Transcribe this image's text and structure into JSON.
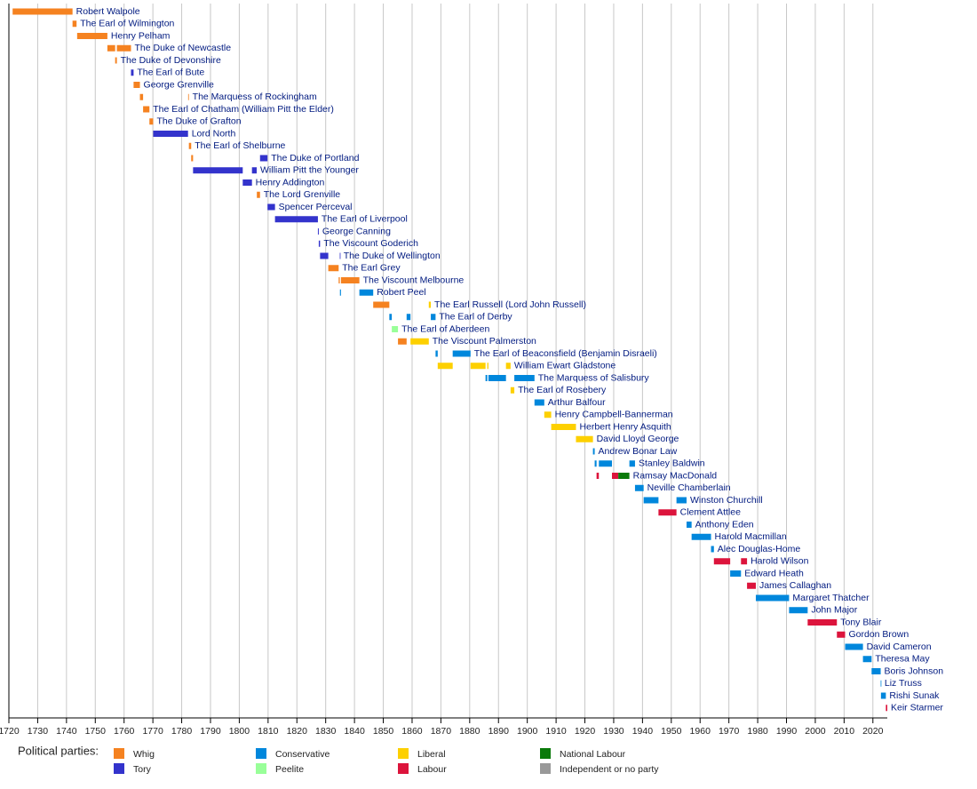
{
  "chart_data": {
    "type": "timeline",
    "legend_title": "Political parties:",
    "parties": [
      {
        "name": "Whig",
        "color": "#f58220"
      },
      {
        "name": "Tory",
        "color": "#3333cc"
      },
      {
        "name": "Conservative",
        "color": "#0087dc"
      },
      {
        "name": "Peelite",
        "color": "#99ff99"
      },
      {
        "name": "Liberal",
        "color": "#fdd000"
      },
      {
        "name": "Labour",
        "color": "#dc143c"
      },
      {
        "name": "National Labour",
        "color": "#0a7a0a"
      },
      {
        "name": "Independent or no party",
        "color": "#999999"
      }
    ],
    "rows": [
      {
        "name": "Robert Walpole",
        "terms": [
          {
            "start": 1721.3,
            "end": 1742.1,
            "party": "Whig"
          }
        ]
      },
      {
        "name": "The Earl of Wilmington",
        "terms": [
          {
            "start": 1742.1,
            "end": 1743.5,
            "party": "Whig"
          }
        ]
      },
      {
        "name": "Henry Pelham",
        "terms": [
          {
            "start": 1743.7,
            "end": 1754.2,
            "party": "Whig"
          }
        ]
      },
      {
        "name": "The Duke of Newcastle",
        "terms": [
          {
            "start": 1754.2,
            "end": 1756.9,
            "party": "Whig"
          },
          {
            "start": 1757.5,
            "end": 1762.4,
            "party": "Whig"
          }
        ]
      },
      {
        "name": "The Duke of Devonshire",
        "terms": [
          {
            "start": 1756.9,
            "end": 1757.5,
            "party": "Whig"
          }
        ]
      },
      {
        "name": "The Earl of Bute",
        "terms": [
          {
            "start": 1762.4,
            "end": 1763.3,
            "party": "Tory"
          }
        ]
      },
      {
        "name": "George Grenville",
        "terms": [
          {
            "start": 1763.3,
            "end": 1765.5,
            "party": "Whig"
          }
        ]
      },
      {
        "name": "The Marquess of Rockingham",
        "terms": [
          {
            "start": 1765.5,
            "end": 1766.6,
            "party": "Whig"
          },
          {
            "start": 1782.25,
            "end": 1782.5,
            "party": "Whig"
          }
        ]
      },
      {
        "name": "The Earl of Chatham (William Pitt the Elder)",
        "terms": [
          {
            "start": 1766.6,
            "end": 1768.8,
            "party": "Whig"
          }
        ]
      },
      {
        "name": "The Duke of Grafton",
        "terms": [
          {
            "start": 1768.8,
            "end": 1770.1,
            "party": "Whig"
          }
        ]
      },
      {
        "name": "Lord North",
        "terms": [
          {
            "start": 1770.1,
            "end": 1782.2,
            "party": "Tory"
          }
        ]
      },
      {
        "name": "The Earl of Shelburne",
        "terms": [
          {
            "start": 1782.5,
            "end": 1783.3,
            "party": "Whig"
          }
        ]
      },
      {
        "name": "The Duke of Portland",
        "terms": [
          {
            "start": 1783.3,
            "end": 1783.95,
            "party": "Whig"
          },
          {
            "start": 1807.2,
            "end": 1809.8,
            "party": "Tory"
          }
        ]
      },
      {
        "name": "William Pitt the Younger",
        "terms": [
          {
            "start": 1783.95,
            "end": 1801.2,
            "party": "Tory"
          },
          {
            "start": 1804.4,
            "end": 1806.05,
            "party": "Tory"
          }
        ]
      },
      {
        "name": "Henry Addington",
        "terms": [
          {
            "start": 1801.2,
            "end": 1804.4,
            "party": "Tory"
          }
        ]
      },
      {
        "name": "The Lord Grenville",
        "terms": [
          {
            "start": 1806.1,
            "end": 1807.2,
            "party": "Whig"
          }
        ]
      },
      {
        "name": "Spencer Perceval",
        "terms": [
          {
            "start": 1809.8,
            "end": 1812.4,
            "party": "Tory"
          }
        ]
      },
      {
        "name": "The Earl of Liverpool",
        "terms": [
          {
            "start": 1812.4,
            "end": 1827.3,
            "party": "Tory"
          }
        ]
      },
      {
        "name": "George Canning",
        "terms": [
          {
            "start": 1827.3,
            "end": 1827.6,
            "party": "Tory"
          }
        ]
      },
      {
        "name": "The Viscount Goderich",
        "terms": [
          {
            "start": 1827.6,
            "end": 1828.05,
            "party": "Tory"
          }
        ]
      },
      {
        "name": "The Duke of Wellington",
        "terms": [
          {
            "start": 1828.05,
            "end": 1830.9,
            "party": "Tory"
          },
          {
            "start": 1834.9,
            "end": 1834.95,
            "party": "Tory"
          }
        ]
      },
      {
        "name": "The Earl Grey",
        "terms": [
          {
            "start": 1830.9,
            "end": 1834.5,
            "party": "Whig"
          }
        ]
      },
      {
        "name": "The Viscount Melbourne",
        "terms": [
          {
            "start": 1834.5,
            "end": 1834.9,
            "party": "Whig"
          },
          {
            "start": 1835.3,
            "end": 1841.7,
            "party": "Whig"
          }
        ]
      },
      {
        "name": "Robert Peel",
        "terms": [
          {
            "start": 1834.95,
            "end": 1835.3,
            "party": "Conservative"
          },
          {
            "start": 1841.7,
            "end": 1846.5,
            "party": "Conservative"
          }
        ]
      },
      {
        "name": "The Earl Russell (Lord John Russell)",
        "terms": [
          {
            "start": 1846.5,
            "end": 1852.1,
            "party": "Whig"
          },
          {
            "start": 1865.8,
            "end": 1866.5,
            "party": "Liberal"
          }
        ]
      },
      {
        "name": "The Earl of Derby",
        "terms": [
          {
            "start": 1852.1,
            "end": 1852.95,
            "party": "Conservative"
          },
          {
            "start": 1858.1,
            "end": 1859.45,
            "party": "Conservative"
          },
          {
            "start": 1866.5,
            "end": 1868.15,
            "party": "Conservative"
          }
        ]
      },
      {
        "name": "The Earl of Aberdeen",
        "terms": [
          {
            "start": 1852.95,
            "end": 1855.1,
            "party": "Peelite"
          }
        ]
      },
      {
        "name": "The Viscount Palmerston",
        "terms": [
          {
            "start": 1855.1,
            "end": 1858.1,
            "party": "Whig"
          },
          {
            "start": 1859.45,
            "end": 1865.8,
            "party": "Liberal"
          }
        ]
      },
      {
        "name": "The Earl of Beaconsfield (Benjamin Disraeli)",
        "terms": [
          {
            "start": 1868.15,
            "end": 1868.9,
            "party": "Conservative"
          },
          {
            "start": 1874.1,
            "end": 1880.3,
            "party": "Conservative"
          }
        ]
      },
      {
        "name": "William Ewart Gladstone",
        "terms": [
          {
            "start": 1868.9,
            "end": 1874.1,
            "party": "Liberal"
          },
          {
            "start": 1880.3,
            "end": 1885.5,
            "party": "Liberal"
          },
          {
            "start": 1886.1,
            "end": 1886.5,
            "party": "Liberal"
          },
          {
            "start": 1892.6,
            "end": 1894.2,
            "party": "Liberal"
          }
        ]
      },
      {
        "name": "The Marquess of Salisbury",
        "terms": [
          {
            "start": 1885.5,
            "end": 1886.1,
            "party": "Conservative"
          },
          {
            "start": 1886.5,
            "end": 1892.6,
            "party": "Conservative"
          },
          {
            "start": 1895.5,
            "end": 1902.5,
            "party": "Conservative"
          }
        ]
      },
      {
        "name": "The Earl of Rosebery",
        "terms": [
          {
            "start": 1894.2,
            "end": 1895.5,
            "party": "Liberal"
          }
        ]
      },
      {
        "name": "Arthur Balfour",
        "terms": [
          {
            "start": 1902.5,
            "end": 1905.9,
            "party": "Conservative"
          }
        ]
      },
      {
        "name": "Henry Campbell-Bannerman",
        "terms": [
          {
            "start": 1905.9,
            "end": 1908.3,
            "party": "Liberal"
          }
        ]
      },
      {
        "name": "Herbert Henry Asquith",
        "terms": [
          {
            "start": 1908.3,
            "end": 1916.9,
            "party": "Liberal"
          }
        ]
      },
      {
        "name": "David Lloyd George",
        "terms": [
          {
            "start": 1916.9,
            "end": 1922.8,
            "party": "Liberal"
          }
        ]
      },
      {
        "name": "Andrew Bonar Law",
        "terms": [
          {
            "start": 1922.8,
            "end": 1923.4,
            "party": "Conservative"
          }
        ]
      },
      {
        "name": "Stanley Baldwin",
        "terms": [
          {
            "start": 1923.4,
            "end": 1924.05,
            "party": "Conservative"
          },
          {
            "start": 1924.85,
            "end": 1929.4,
            "party": "Conservative"
          },
          {
            "start": 1935.45,
            "end": 1937.4,
            "party": "Conservative"
          }
        ]
      },
      {
        "name": "Ramsay MacDonald",
        "terms": [
          {
            "start": 1924.05,
            "end": 1924.85,
            "party": "Labour"
          },
          {
            "start": 1929.4,
            "end": 1931.6,
            "party": "Labour"
          },
          {
            "start": 1931.6,
            "end": 1935.45,
            "party": "National Labour"
          }
        ]
      },
      {
        "name": "Neville Chamberlain",
        "terms": [
          {
            "start": 1937.4,
            "end": 1940.4,
            "party": "Conservative"
          }
        ]
      },
      {
        "name": "Winston Churchill",
        "terms": [
          {
            "start": 1940.4,
            "end": 1945.55,
            "party": "Conservative"
          },
          {
            "start": 1951.8,
            "end": 1955.3,
            "party": "Conservative"
          }
        ]
      },
      {
        "name": "Clement Attlee",
        "terms": [
          {
            "start": 1945.55,
            "end": 1951.8,
            "party": "Labour"
          }
        ]
      },
      {
        "name": "Anthony Eden",
        "terms": [
          {
            "start": 1955.3,
            "end": 1957.05,
            "party": "Conservative"
          }
        ]
      },
      {
        "name": "Harold Macmillan",
        "terms": [
          {
            "start": 1957.05,
            "end": 1963.8,
            "party": "Conservative"
          }
        ]
      },
      {
        "name": "Alec Douglas-Home",
        "terms": [
          {
            "start": 1963.8,
            "end": 1964.8,
            "party": "Conservative"
          }
        ]
      },
      {
        "name": "Harold Wilson",
        "terms": [
          {
            "start": 1964.8,
            "end": 1970.45,
            "party": "Labour"
          },
          {
            "start": 1974.2,
            "end": 1976.3,
            "party": "Labour"
          }
        ]
      },
      {
        "name": "Edward Heath",
        "terms": [
          {
            "start": 1970.45,
            "end": 1974.2,
            "party": "Conservative"
          }
        ]
      },
      {
        "name": "James Callaghan",
        "terms": [
          {
            "start": 1976.3,
            "end": 1979.35,
            "party": "Labour"
          }
        ]
      },
      {
        "name": "Margaret Thatcher",
        "terms": [
          {
            "start": 1979.35,
            "end": 1990.9,
            "party": "Conservative"
          }
        ]
      },
      {
        "name": "John Major",
        "terms": [
          {
            "start": 1990.9,
            "end": 1997.35,
            "party": "Conservative"
          }
        ]
      },
      {
        "name": "Tony Blair",
        "terms": [
          {
            "start": 1997.35,
            "end": 2007.5,
            "party": "Labour"
          }
        ]
      },
      {
        "name": "Gordon Brown",
        "terms": [
          {
            "start": 2007.5,
            "end": 2010.35,
            "party": "Labour"
          }
        ]
      },
      {
        "name": "David Cameron",
        "terms": [
          {
            "start": 2010.35,
            "end": 2016.55,
            "party": "Conservative"
          }
        ]
      },
      {
        "name": "Theresa May",
        "terms": [
          {
            "start": 2016.55,
            "end": 2019.55,
            "party": "Conservative"
          }
        ]
      },
      {
        "name": "Boris Johnson",
        "terms": [
          {
            "start": 2019.55,
            "end": 2022.7,
            "party": "Conservative"
          }
        ]
      },
      {
        "name": "Liz Truss",
        "terms": [
          {
            "start": 2022.7,
            "end": 2022.8,
            "party": "Conservative"
          }
        ]
      },
      {
        "name": "Rishi Sunak",
        "terms": [
          {
            "start": 2022.8,
            "end": 2024.5,
            "party": "Conservative"
          }
        ]
      },
      {
        "name": "Keir Starmer",
        "terms": [
          {
            "start": 2024.5,
            "end": 2025,
            "party": "Labour"
          }
        ]
      }
    ],
    "xlim": [
      1720,
      2025
    ],
    "xticks": [
      1720,
      1730,
      1740,
      1750,
      1760,
      1770,
      1780,
      1790,
      1800,
      1810,
      1820,
      1830,
      1840,
      1850,
      1860,
      1870,
      1880,
      1890,
      1900,
      1910,
      1920,
      1930,
      1940,
      1950,
      1960,
      1970,
      1980,
      1990,
      2000,
      2010,
      2020
    ],
    "grid": true
  }
}
